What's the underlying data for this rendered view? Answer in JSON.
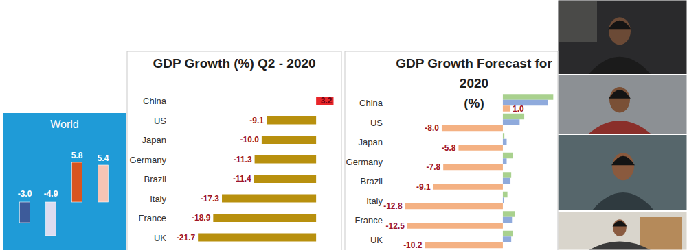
{
  "chart_data": [
    {
      "type": "bar",
      "title": "World",
      "categories": [
        null,
        null,
        null,
        null
      ],
      "values": [
        -3.0,
        -4.9,
        5.8,
        5.4
      ],
      "value_labels": [
        "-3.0",
        "-4.9",
        "5.8",
        "5.4"
      ],
      "colors": [
        "#3d5b9a",
        "#dcdcf0",
        "#d9541f",
        "#f7c5b5"
      ],
      "ylim": [
        -6,
        8
      ],
      "data_labels": true,
      "tick_labels": false
    },
    {
      "type": "bar",
      "title": "GDP Growth (%) Q2 - 2020",
      "orientation": "horizontal",
      "categories": [
        "China",
        "US",
        "Japan",
        "Germany",
        "Brazil",
        "Italy",
        "France",
        "UK"
      ],
      "values": [
        3.2,
        -9.1,
        -10.0,
        -11.3,
        -11.4,
        -17.3,
        -18.9,
        -21.7
      ],
      "value_labels": [
        "3.2",
        "-9.1",
        "-10.0",
        "-11.3",
        "-11.4",
        "-17.3",
        "-18.9",
        "-21.7"
      ],
      "colors": [
        "#e8262a",
        "#b8900e",
        "#b8900e",
        "#b8900e",
        "#b8900e",
        "#b8900e",
        "#b8900e",
        "#b8900e"
      ],
      "xlim": [
        -25,
        4.4
      ],
      "data_labels": true,
      "tick_labels": "y"
    },
    {
      "type": "bar",
      "title": "GDP Growth Forecast for 2020 (%)",
      "orientation": "horizontal",
      "categories": [
        "China",
        "US",
        "Japan",
        "Germany",
        "Brazil",
        "Italy",
        "France",
        "UK"
      ],
      "series": [
        {
          "color": "#a9d18e",
          "values": [
            6.6,
            2.8,
            0.2,
            1.3,
            1.1,
            0.6,
            1.6,
            1.3
          ]
        },
        {
          "color": "#8faadc",
          "values": [
            5.9,
            2.2,
            0.5,
            0.5,
            1.0,
            0.1,
            1.2,
            1.1
          ]
        },
        {
          "color": "#f4b183",
          "values": [
            1.0,
            -8.0,
            -5.8,
            -7.8,
            -9.1,
            -12.8,
            -12.5,
            -10.2
          ],
          "value_labels": [
            "1.0",
            "-8.0",
            "-5.8",
            "-7.8",
            "-9.1",
            "-12.8",
            "-12.5",
            "-10.2"
          ]
        }
      ],
      "xlim": [
        -14.2,
        7.2
      ],
      "data_labels": true,
      "tick_labels": "y"
    }
  ]
}
